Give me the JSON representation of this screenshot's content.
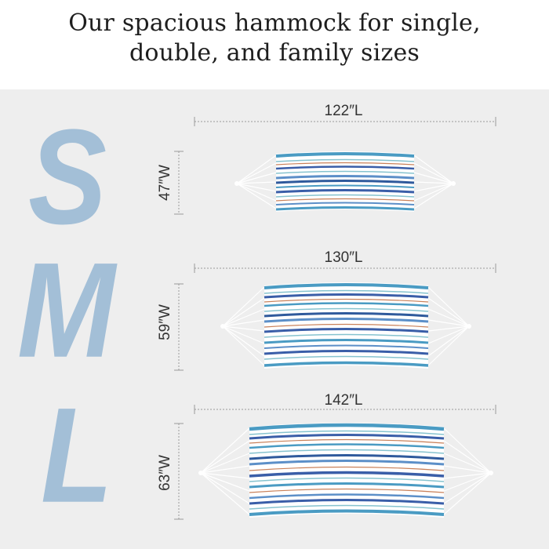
{
  "heading": {
    "line1": "Our spacious hammock for single,",
    "line2": "double, and family sizes"
  },
  "sizes": [
    {
      "letter": "S",
      "length": "122″L",
      "width": "47″W"
    },
    {
      "letter": "M",
      "length": "130″L",
      "width": "59″W"
    },
    {
      "letter": "L",
      "length": "142″L",
      "width": "63″W"
    }
  ],
  "colors": {
    "letter": "#a3bfd7",
    "panel": "#eeeeee",
    "stripes": [
      "#4a9bc3",
      "#3a5ea8",
      "#c9815a",
      "#86c3cf",
      "#5c8fc8",
      "#2f5a9c"
    ]
  }
}
